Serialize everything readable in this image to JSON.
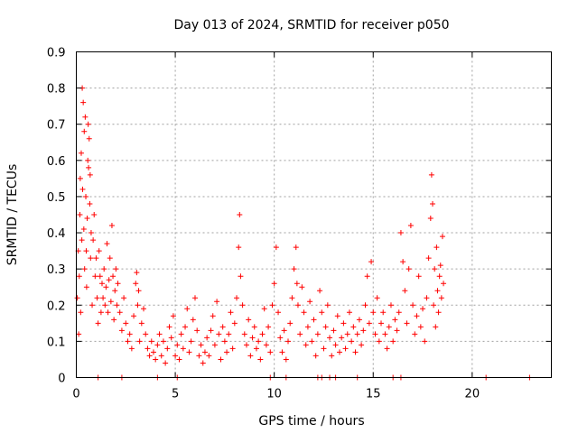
{
  "chart_data": {
    "type": "scatter",
    "title": "Day 013 of 2024, SRMTID for receiver p050",
    "xlabel": "GPS time / hours",
    "ylabel": "SRMTID / TECUs",
    "xlim": [
      0,
      24
    ],
    "ylim": [
      0,
      0.9
    ],
    "xticks": [
      0,
      5,
      10,
      15,
      20
    ],
    "yticks": [
      0,
      0.1,
      0.2,
      0.3,
      0.4,
      0.5,
      0.6,
      0.7,
      0.8,
      0.9
    ],
    "xtick_labels": [
      "0",
      "5",
      "10",
      "15",
      "20"
    ],
    "ytick_labels": [
      "0",
      "0.1",
      "0.2",
      "0.3",
      "0.4",
      "0.5",
      "0.6",
      "0.7",
      "0.8",
      "0.9"
    ],
    "grid": true,
    "marker": "plus",
    "color": "#ff0000",
    "series": [
      {
        "name": "SRMTID",
        "points": [
          [
            0.05,
            0.22
          ],
          [
            0.1,
            0.35
          ],
          [
            0.12,
            0.12
          ],
          [
            0.15,
            0.28
          ],
          [
            0.18,
            0.45
          ],
          [
            0.2,
            0.55
          ],
          [
            0.22,
            0.18
          ],
          [
            0.25,
            0.62
          ],
          [
            0.28,
            0.38
          ],
          [
            0.3,
            0.8
          ],
          [
            0.32,
            0.52
          ],
          [
            0.35,
            0.76
          ],
          [
            0.38,
            0.41
          ],
          [
            0.4,
            0.68
          ],
          [
            0.42,
            0.3
          ],
          [
            0.45,
            0.72
          ],
          [
            0.48,
            0.5
          ],
          [
            0.5,
            0.35
          ],
          [
            0.52,
            0.25
          ],
          [
            0.55,
            0.44
          ],
          [
            0.58,
            0.6
          ],
          [
            0.6,
            0.7
          ],
          [
            0.62,
            0.58
          ],
          [
            0.65,
            0.66
          ],
          [
            0.68,
            0.48
          ],
          [
            0.7,
            0.56
          ],
          [
            0.72,
            0.33
          ],
          [
            0.75,
            0.4
          ],
          [
            0.8,
            0.2
          ],
          [
            0.85,
            0.38
          ],
          [
            0.9,
            0.45
          ],
          [
            0.95,
            0.28
          ],
          [
            1.0,
            0.33
          ],
          [
            1.05,
            0.22
          ],
          [
            1.1,
            0.15
          ],
          [
            1.15,
            0.35
          ],
          [
            1.2,
            0.28
          ],
          [
            1.25,
            0.18
          ],
          [
            1.3,
            0.26
          ],
          [
            1.35,
            0.22
          ],
          [
            1.4,
            0.3
          ],
          [
            1.45,
            0.2
          ],
          [
            1.5,
            0.25
          ],
          [
            1.55,
            0.37
          ],
          [
            1.6,
            0.18
          ],
          [
            1.65,
            0.27
          ],
          [
            1.7,
            0.33
          ],
          [
            1.75,
            0.21
          ],
          [
            1.8,
            0.42
          ],
          [
            1.85,
            0.28
          ],
          [
            1.9,
            0.16
          ],
          [
            1.95,
            0.24
          ],
          [
            2.0,
            0.3
          ],
          [
            2.05,
            0.2
          ],
          [
            2.1,
            0.26
          ],
          [
            2.2,
            0.18
          ],
          [
            2.3,
            0.13
          ],
          [
            2.4,
            0.22
          ],
          [
            2.5,
            0.15
          ],
          [
            2.6,
            0.1
          ],
          [
            2.7,
            0.12
          ],
          [
            2.8,
            0.08
          ],
          [
            2.9,
            0.17
          ],
          [
            3.0,
            0.26
          ],
          [
            3.05,
            0.29
          ],
          [
            3.1,
            0.2
          ],
          [
            3.15,
            0.24
          ],
          [
            3.2,
            0.1
          ],
          [
            3.3,
            0.15
          ],
          [
            3.4,
            0.19
          ],
          [
            3.5,
            0.12
          ],
          [
            3.6,
            0.08
          ],
          [
            3.7,
            0.06
          ],
          [
            3.8,
            0.1
          ],
          [
            3.9,
            0.07
          ],
          [
            4.0,
            0.05
          ],
          [
            4.1,
            0.09
          ],
          [
            4.2,
            0.12
          ],
          [
            4.3,
            0.06
          ],
          [
            4.4,
            0.1
          ],
          [
            4.5,
            0.04
          ],
          [
            4.6,
            0.08
          ],
          [
            4.7,
            0.14
          ],
          [
            4.8,
            0.11
          ],
          [
            4.9,
            0.17
          ],
          [
            5.0,
            0.06
          ],
          [
            5.1,
            0.09
          ],
          [
            5.2,
            0.05
          ],
          [
            5.3,
            0.12
          ],
          [
            5.4,
            0.08
          ],
          [
            5.5,
            0.14
          ],
          [
            5.6,
            0.19
          ],
          [
            5.7,
            0.07
          ],
          [
            5.8,
            0.1
          ],
          [
            5.9,
            0.16
          ],
          [
            6.0,
            0.22
          ],
          [
            6.1,
            0.13
          ],
          [
            6.2,
            0.06
          ],
          [
            6.3,
            0.09
          ],
          [
            6.4,
            0.04
          ],
          [
            6.5,
            0.07
          ],
          [
            6.6,
            0.11
          ],
          [
            6.7,
            0.06
          ],
          [
            6.8,
            0.13
          ],
          [
            6.9,
            0.17
          ],
          [
            7.0,
            0.09
          ],
          [
            7.1,
            0.21
          ],
          [
            7.2,
            0.12
          ],
          [
            7.3,
            0.05
          ],
          [
            7.4,
            0.14
          ],
          [
            7.5,
            0.1
          ],
          [
            7.6,
            0.07
          ],
          [
            7.7,
            0.12
          ],
          [
            7.8,
            0.18
          ],
          [
            7.9,
            0.08
          ],
          [
            8.0,
            0.15
          ],
          [
            8.1,
            0.22
          ],
          [
            8.2,
            0.36
          ],
          [
            8.25,
            0.45
          ],
          [
            8.3,
            0.28
          ],
          [
            8.4,
            0.2
          ],
          [
            8.5,
            0.12
          ],
          [
            8.6,
            0.09
          ],
          [
            8.7,
            0.16
          ],
          [
            8.8,
            0.06
          ],
          [
            8.9,
            0.11
          ],
          [
            9.0,
            0.14
          ],
          [
            9.1,
            0.08
          ],
          [
            9.2,
            0.1
          ],
          [
            9.3,
            0.05
          ],
          [
            9.4,
            0.12
          ],
          [
            9.5,
            0.19
          ],
          [
            9.6,
            0.09
          ],
          [
            9.7,
            0.14
          ],
          [
            9.8,
            0.07
          ],
          [
            9.9,
            0.2
          ],
          [
            10.0,
            0.26
          ],
          [
            10.1,
            0.36
          ],
          [
            10.2,
            0.18
          ],
          [
            10.3,
            0.11
          ],
          [
            10.4,
            0.07
          ],
          [
            10.5,
            0.13
          ],
          [
            10.6,
            0.05
          ],
          [
            10.7,
            0.1
          ],
          [
            10.8,
            0.15
          ],
          [
            10.9,
            0.22
          ],
          [
            11.0,
            0.3
          ],
          [
            11.1,
            0.36
          ],
          [
            11.15,
            0.26
          ],
          [
            11.2,
            0.2
          ],
          [
            11.3,
            0.12
          ],
          [
            11.4,
            0.25
          ],
          [
            11.5,
            0.18
          ],
          [
            11.6,
            0.09
          ],
          [
            11.7,
            0.14
          ],
          [
            11.8,
            0.21
          ],
          [
            11.9,
            0.1
          ],
          [
            12.0,
            0.16
          ],
          [
            12.1,
            0.06
          ],
          [
            12.2,
            0.12
          ],
          [
            12.3,
            0.24
          ],
          [
            12.4,
            0.18
          ],
          [
            12.5,
            0.08
          ],
          [
            12.6,
            0.14
          ],
          [
            12.7,
            0.2
          ],
          [
            12.8,
            0.11
          ],
          [
            12.9,
            0.06
          ],
          [
            13.0,
            0.13
          ],
          [
            13.1,
            0.09
          ],
          [
            13.2,
            0.17
          ],
          [
            13.3,
            0.07
          ],
          [
            13.4,
            0.11
          ],
          [
            13.5,
            0.15
          ],
          [
            13.6,
            0.08
          ],
          [
            13.7,
            0.12
          ],
          [
            13.8,
            0.18
          ],
          [
            13.9,
            0.1
          ],
          [
            14.0,
            0.14
          ],
          [
            14.1,
            0.07
          ],
          [
            14.2,
            0.12
          ],
          [
            14.3,
            0.16
          ],
          [
            14.4,
            0.09
          ],
          [
            14.5,
            0.13
          ],
          [
            14.6,
            0.2
          ],
          [
            14.7,
            0.28
          ],
          [
            14.8,
            0.15
          ],
          [
            14.9,
            0.32
          ],
          [
            15.0,
            0.18
          ],
          [
            15.1,
            0.12
          ],
          [
            15.2,
            0.22
          ],
          [
            15.3,
            0.1
          ],
          [
            15.4,
            0.15
          ],
          [
            15.5,
            0.18
          ],
          [
            15.6,
            0.12
          ],
          [
            15.7,
            0.08
          ],
          [
            15.8,
            0.14
          ],
          [
            15.9,
            0.2
          ],
          [
            16.0,
            0.1
          ],
          [
            16.1,
            0.16
          ],
          [
            16.2,
            0.13
          ],
          [
            16.3,
            0.18
          ],
          [
            16.4,
            0.4
          ],
          [
            16.5,
            0.32
          ],
          [
            16.6,
            0.24
          ],
          [
            16.7,
            0.15
          ],
          [
            16.8,
            0.3
          ],
          [
            16.9,
            0.42
          ],
          [
            17.0,
            0.2
          ],
          [
            17.1,
            0.12
          ],
          [
            17.2,
            0.17
          ],
          [
            17.3,
            0.28
          ],
          [
            17.4,
            0.14
          ],
          [
            17.5,
            0.19
          ],
          [
            17.6,
            0.1
          ],
          [
            17.7,
            0.22
          ],
          [
            17.8,
            0.33
          ],
          [
            17.9,
            0.44
          ],
          [
            17.95,
            0.56
          ],
          [
            18.0,
            0.48
          ],
          [
            18.05,
            0.2
          ],
          [
            18.1,
            0.3
          ],
          [
            18.15,
            0.14
          ],
          [
            18.2,
            0.36
          ],
          [
            18.25,
            0.24
          ],
          [
            18.3,
            0.18
          ],
          [
            18.35,
            0.28
          ],
          [
            18.4,
            0.31
          ],
          [
            18.45,
            0.22
          ],
          [
            18.5,
            0.39
          ],
          [
            18.55,
            0.26
          ],
          [
            1.1,
            0.0
          ],
          [
            2.3,
            0.0
          ],
          [
            4.1,
            0.0
          ],
          [
            5.1,
            0.0
          ],
          [
            9.8,
            0.0
          ],
          [
            10.6,
            0.0
          ],
          [
            12.2,
            0.0
          ],
          [
            12.4,
            0.0
          ],
          [
            12.8,
            0.0
          ],
          [
            13.1,
            0.0
          ],
          [
            14.2,
            0.0
          ],
          [
            16.0,
            0.0
          ],
          [
            16.4,
            0.0
          ],
          [
            20.7,
            0.0
          ],
          [
            22.9,
            0.0
          ]
        ]
      }
    ]
  }
}
